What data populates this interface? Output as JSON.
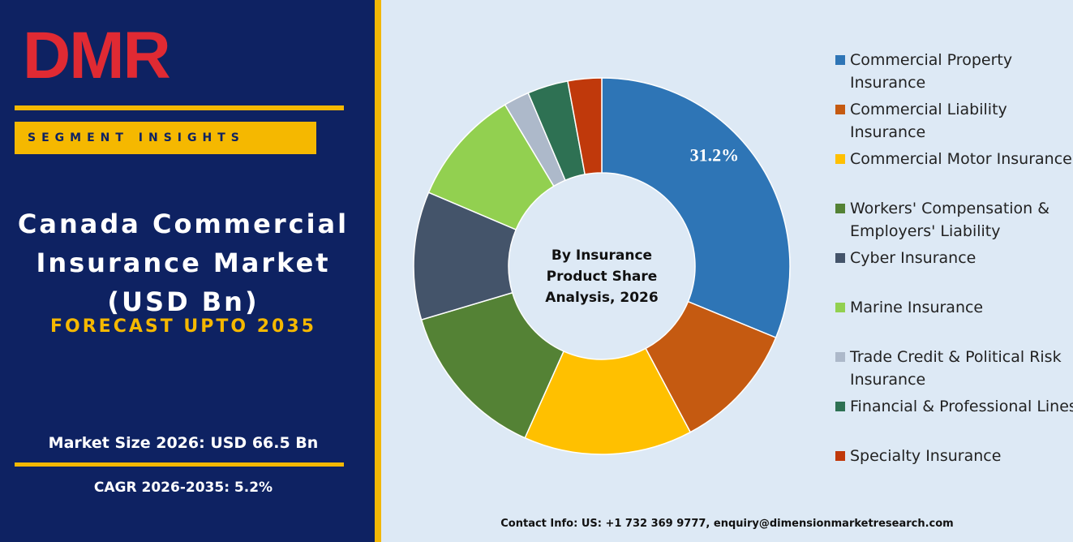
{
  "header": {
    "logo": "DMR",
    "tag": "SEGMENT INSIGHTS"
  },
  "panel": {
    "title": "Canada Commercial Insurance Market (USD Bn)",
    "forecast": "FORECAST UPTO 2035",
    "market_size": "Market Size 2026: USD 66.5 Bn",
    "cagr": "CAGR 2026-2035: 5.2%"
  },
  "contact": "Contact Info: US: +1 732 369 9777, enquiry@dimensionmarketresearch.com",
  "chart_data": {
    "type": "donut",
    "title": "By Insurance Product Share Analysis, 2026",
    "categories": [
      "Commercial Property Insurance",
      "Commercial Liability Insurance",
      "Commercial Motor Insurance",
      "Workers' Compensation & Employers' Liability",
      "Cyber Insurance",
      "Marine Insurance",
      "Trade Credit & Political Risk Insurance",
      "Financial & Professional Lines",
      "Specialty Insurance"
    ],
    "values": [
      31.2,
      11,
      14.5,
      13.7,
      11,
      10,
      2.2,
      3.5,
      2.9
    ],
    "value_labels": [
      "31.2%",
      null,
      null,
      null,
      null,
      null,
      null,
      null,
      null
    ],
    "colors": [
      "#2e75b6",
      "#c55a11",
      "#ffc000",
      "#548235",
      "#44546a",
      "#92d050",
      "#adb9ca",
      "#2e7153",
      "#c0390b"
    ],
    "legend": "right"
  }
}
